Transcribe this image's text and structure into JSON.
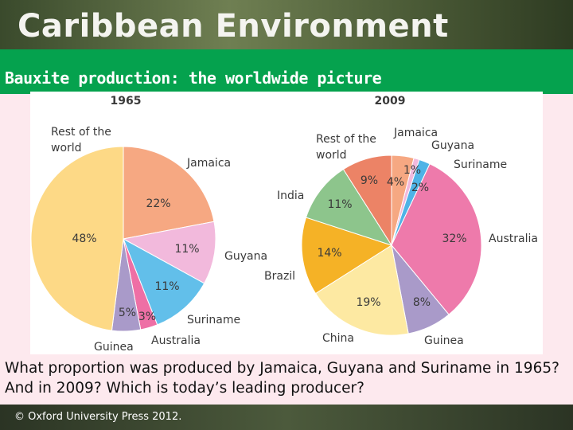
{
  "header": {
    "title": "Caribbean Environment",
    "subtitle": "Bauxite production: the worldwide picture"
  },
  "chart_data": [
    {
      "type": "pie",
      "title": "1965",
      "categories": [
        "Jamaica",
        "Guyana",
        "Suriname",
        "Australia",
        "Guinea",
        "Rest of the world"
      ],
      "values": [
        22,
        11,
        11,
        3,
        5,
        48
      ],
      "value_labels": [
        "22%",
        "11%",
        "11%",
        "3%",
        "5%",
        "48%"
      ],
      "colors": [
        "#f6a882",
        "#f2b9dc",
        "#62bfea",
        "#ee6fa5",
        "#a99ac9",
        "#fdd986"
      ]
    },
    {
      "type": "pie",
      "title": "2009",
      "categories": [
        "Jamaica",
        "Guyana",
        "Suriname",
        "Australia",
        "Guinea",
        "China",
        "Brazil",
        "India",
        "Rest of the world"
      ],
      "values": [
        4,
        1,
        2,
        32,
        8,
        19,
        14,
        11,
        9
      ],
      "value_labels": [
        "4%",
        "1%",
        "2%",
        "32%",
        "8%",
        "19%",
        "14%",
        "11%",
        "9%"
      ],
      "colors": [
        "#f6a882",
        "#f2b9dc",
        "#4fb3e6",
        "#ee7aab",
        "#a99ac9",
        "#fde9a2",
        "#f5b226",
        "#8dc58c",
        "#ec8366"
      ]
    }
  ],
  "question": "What proportion was produced by Jamaica, Guyana and Suriname in 1965? And in 2009? Which is today’s leading producer?",
  "footer": "© Oxford University Press 2012."
}
